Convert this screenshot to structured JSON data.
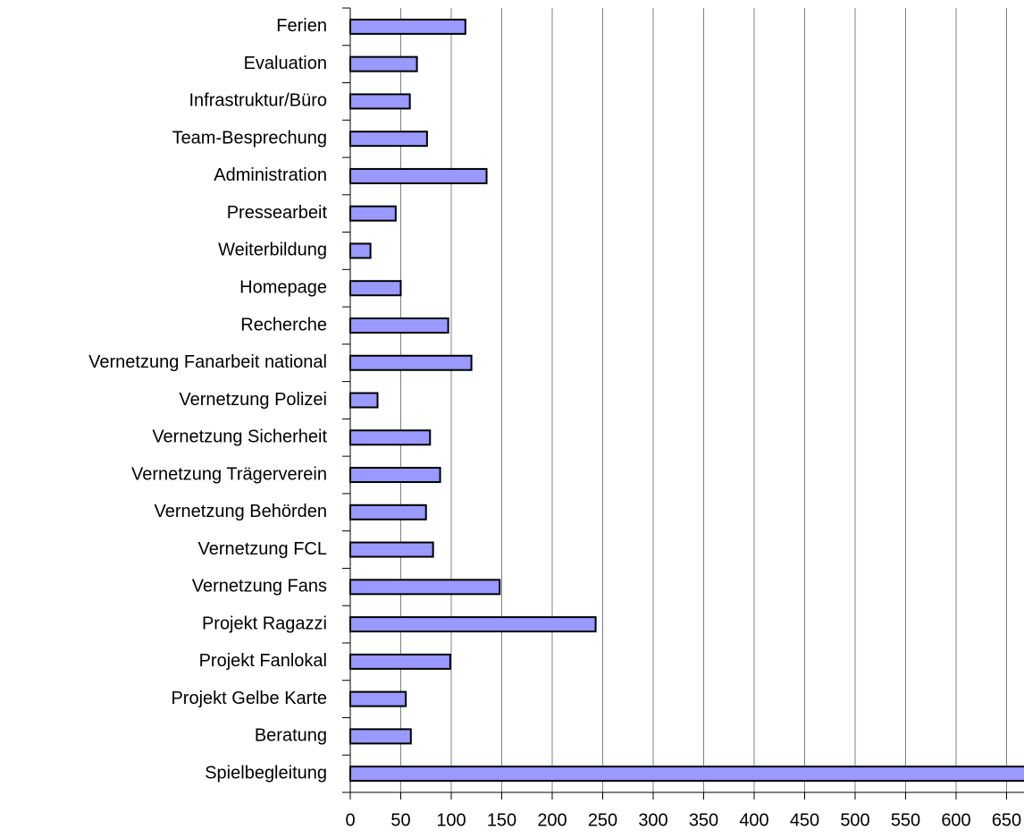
{
  "chart_data": {
    "type": "barh",
    "categories": [
      "Ferien",
      "Evaluation",
      "Infrastruktur/Büro",
      "Team-Besprechung",
      "Administration",
      "Pressearbeit",
      "Weiterbildung",
      "Homepage",
      "Recherche",
      "Vernetzung Fanarbeit national",
      "Vernetzung Polizei",
      "Vernetzung Sicherheit",
      "Vernetzung Trägerverein",
      "Vernetzung Behörden",
      "Vernetzung FCL",
      "Vernetzung Fans",
      "Projekt Ragazzi",
      "Projekt Fanlokal",
      "Projekt Gelbe Karte",
      "Beratung",
      "Spielbegleitung"
    ],
    "values": [
      114,
      66,
      59,
      76,
      135,
      45,
      20,
      50,
      97,
      120,
      27,
      79,
      89,
      75,
      82,
      148,
      243,
      99,
      55,
      60,
      680
    ],
    "color": "#9999ff",
    "xlim": [
      0,
      700
    ],
    "xticks": [
      0,
      50,
      100,
      150,
      200,
      250,
      300,
      350,
      400,
      450,
      500,
      550,
      600,
      650
    ],
    "grid": true
  }
}
